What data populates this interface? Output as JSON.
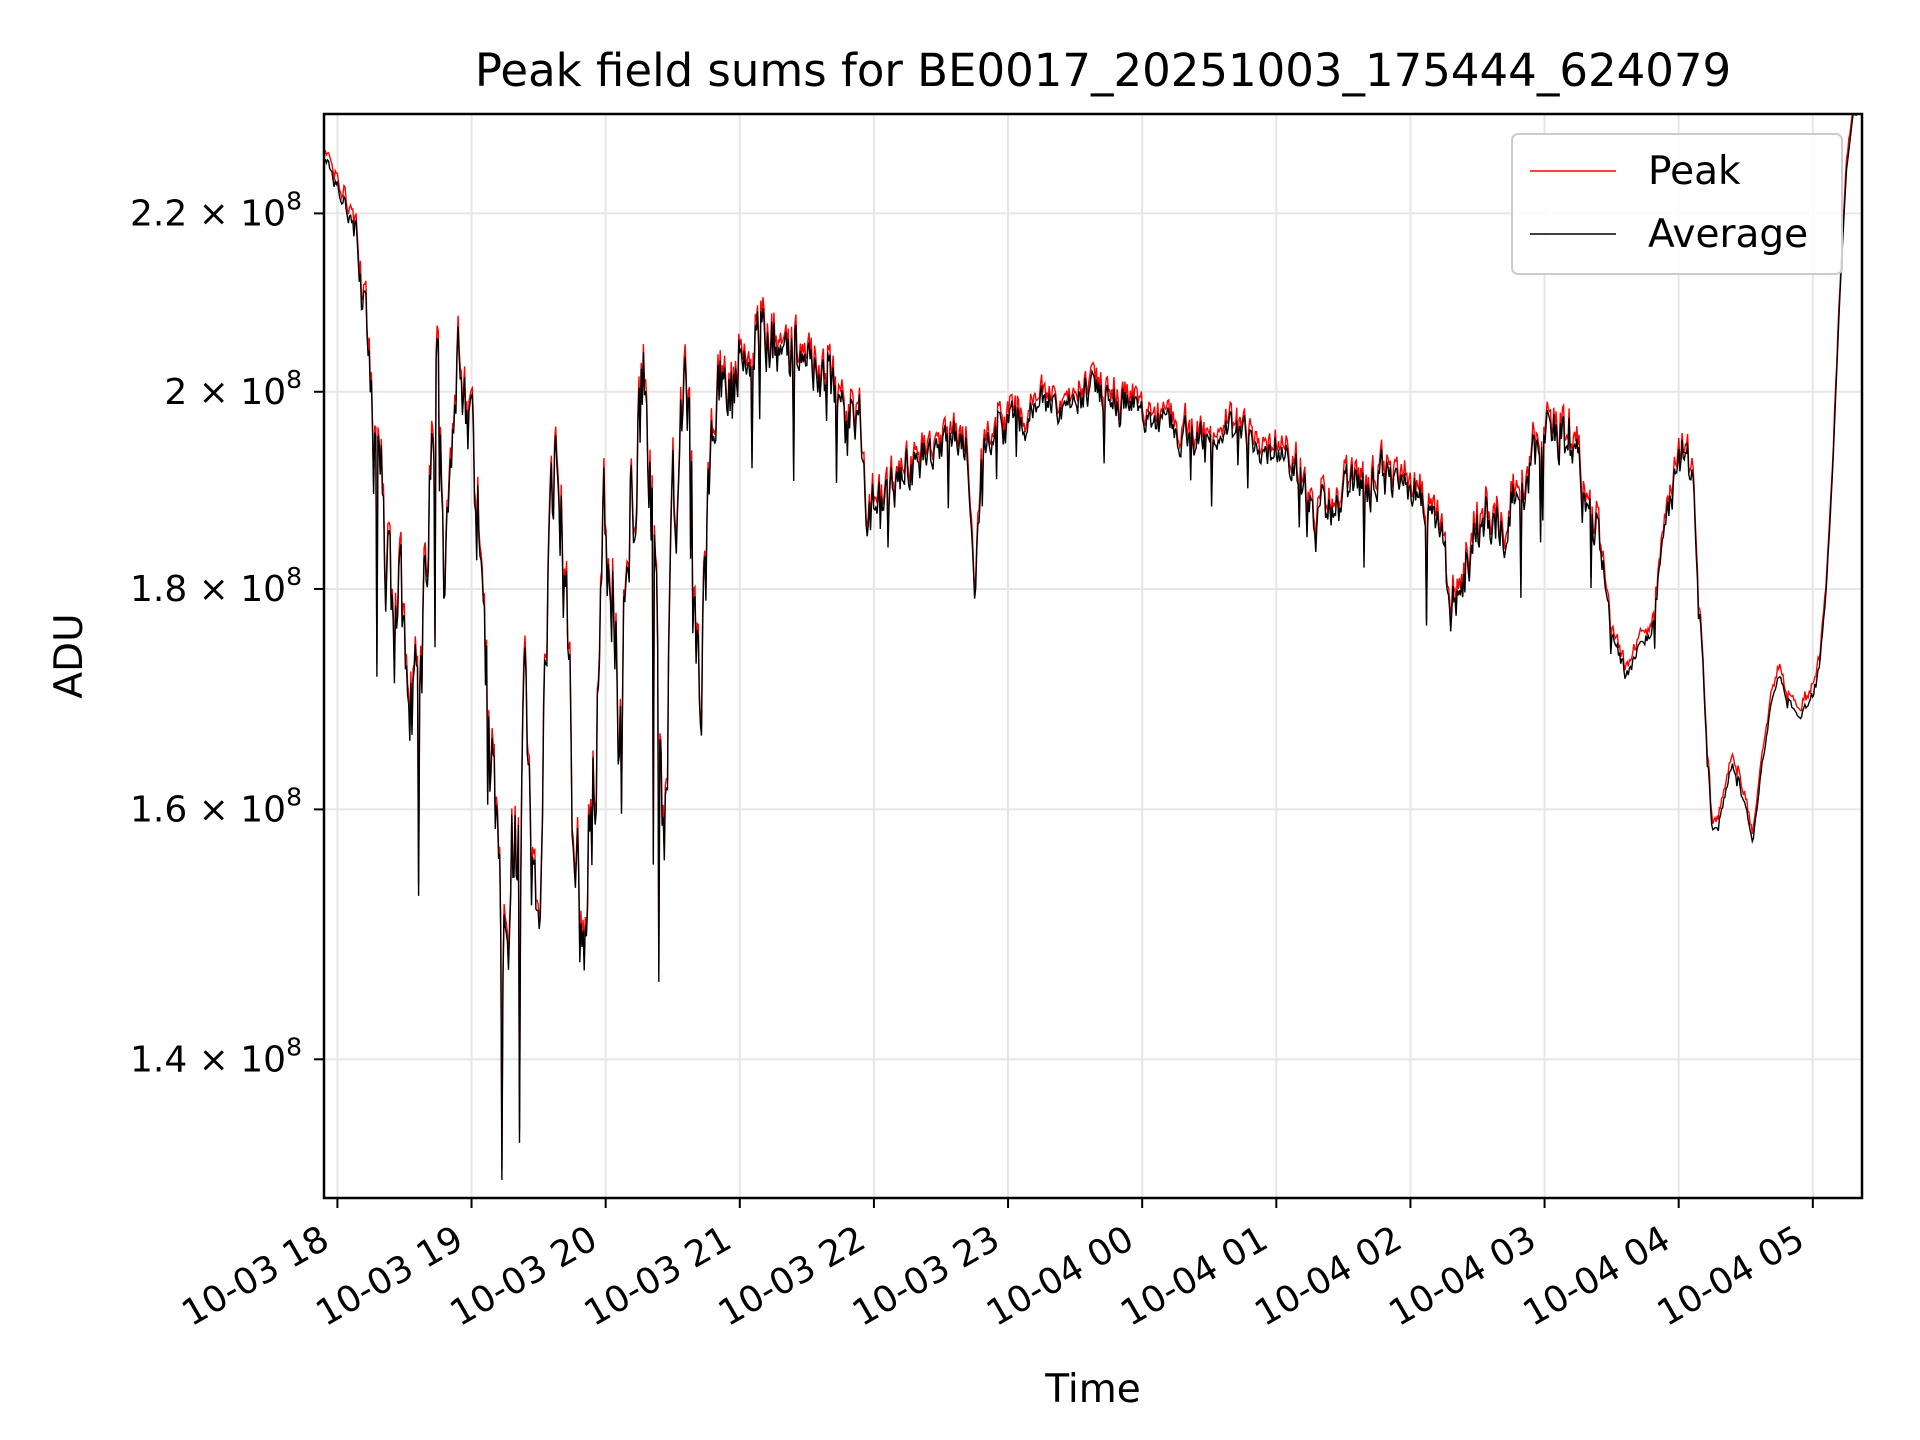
{
  "chart_data": {
    "type": "line",
    "title": "Peak field sums for BE0017_20251003_175444_624079",
    "xlabel": "Time",
    "ylabel": "ADU",
    "y_scale": "log",
    "xlim": [
      "2025-10-03 17:54",
      "2025-10-04 05:22"
    ],
    "ylim": [
      130000000,
      232000000
    ],
    "grid": true,
    "legend_position": "top-right",
    "x_tick_labels": [
      "10-03 18",
      "10-03 19",
      "10-03 20",
      "10-03 21",
      "10-03 22",
      "10-03 23",
      "10-04 00",
      "10-04 01",
      "10-04 02",
      "10-04 03",
      "10-04 04",
      "10-04 05"
    ],
    "x_tick_hours": [
      18,
      19,
      20,
      21,
      22,
      23,
      24,
      25,
      26,
      27,
      28,
      29
    ],
    "y_ticks": [
      {
        "value": 140000000,
        "mantissa": "1.4",
        "exponent": "8"
      },
      {
        "value": 160000000,
        "mantissa": "1.6",
        "exponent": "8"
      },
      {
        "value": 180000000,
        "mantissa": "1.8",
        "exponent": "8"
      },
      {
        "value": 200000000,
        "mantissa": "2",
        "exponent": "8"
      },
      {
        "value": 220000000,
        "mantissa": "2.2",
        "exponent": "8"
      }
    ],
    "series": [
      {
        "name": "Peak",
        "color": "#ff0000",
        "role": "peak"
      },
      {
        "name": "Average",
        "color": "#000000",
        "role": "average"
      }
    ],
    "x_unit": "hours since 2025-10-03 00:00",
    "anchors_x": [
      17.91,
      18.05,
      18.15,
      18.2,
      18.25,
      18.3,
      18.35,
      18.4,
      18.45,
      18.5,
      18.55,
      18.6,
      18.65,
      18.7,
      18.75,
      18.8,
      18.85,
      18.9,
      18.95,
      19.0,
      19.05,
      19.1,
      19.15,
      19.2,
      19.25,
      19.3,
      19.35,
      19.4,
      19.45,
      19.5,
      19.55,
      19.6,
      19.65,
      19.7,
      19.75,
      19.8,
      19.85,
      19.9,
      19.95,
      20.0,
      20.05,
      20.1,
      20.15,
      20.2,
      20.25,
      20.3,
      20.35,
      20.4,
      20.45,
      20.5,
      20.55,
      20.6,
      20.65,
      20.7,
      20.75,
      20.8,
      20.85,
      20.9,
      20.95,
      21.0,
      21.1,
      21.2,
      21.3,
      21.4,
      21.5,
      21.6,
      21.7,
      21.8,
      21.9,
      21.95,
      22.0,
      22.2,
      22.4,
      22.6,
      22.7,
      22.75,
      22.8,
      22.9,
      23.0,
      23.2,
      23.4,
      23.6,
      23.8,
      24.0,
      24.2,
      24.4,
      24.6,
      24.8,
      25.0,
      25.2,
      25.3,
      25.4,
      25.6,
      25.8,
      26.0,
      26.2,
      26.3,
      26.4,
      26.5,
      26.6,
      26.7,
      26.8,
      26.9,
      27.0,
      27.1,
      27.2,
      27.3,
      27.4,
      27.5,
      27.6,
      27.65,
      27.7,
      27.8,
      27.9,
      28.0,
      28.05,
      28.1,
      28.15,
      28.2,
      28.25,
      28.3,
      28.4,
      28.5,
      28.55,
      28.6,
      28.65,
      28.7,
      28.75,
      28.8,
      28.9,
      29.0,
      29.05,
      29.1,
      29.15,
      29.2,
      29.25,
      29.3,
      29.35
    ],
    "anchors_y": [
      227000000,
      222000000,
      218000000,
      208000000,
      200000000,
      191000000,
      186000000,
      178000000,
      175000000,
      178000000,
      168000000,
      166000000,
      178000000,
      192000000,
      205000000,
      180000000,
      195000000,
      203000000,
      198000000,
      193000000,
      188000000,
      175000000,
      165000000,
      152000000,
      148000000,
      160000000,
      155000000,
      165000000,
      152000000,
      150000000,
      172000000,
      190000000,
      198000000,
      175000000,
      162000000,
      152000000,
      150000000,
      162000000,
      175000000,
      185000000,
      178000000,
      168000000,
      180000000,
      190000000,
      195000000,
      200000000,
      190000000,
      172000000,
      160000000,
      185000000,
      195000000,
      205000000,
      188000000,
      165000000,
      182000000,
      198000000,
      200000000,
      202000000,
      200000000,
      205000000,
      207000000,
      206000000,
      205000000,
      204000000,
      203000000,
      202000000,
      200000000,
      199000000,
      197000000,
      187000000,
      188000000,
      191000000,
      193000000,
      195000000,
      194000000,
      180000000,
      192000000,
      195000000,
      196000000,
      198000000,
      199000000,
      200000000,
      199500000,
      198000000,
      196000000,
      195000000,
      196000000,
      195000000,
      194000000,
      190000000,
      186000000,
      188000000,
      190000000,
      191000000,
      190000000,
      188000000,
      178000000,
      182000000,
      186000000,
      188000000,
      187000000,
      190000000,
      192000000,
      194000000,
      196000000,
      195000000,
      190000000,
      186000000,
      176000000,
      172000000,
      173000000,
      175000000,
      176000000,
      186000000,
      193000000,
      194000000,
      191000000,
      180000000,
      168000000,
      158000000,
      159000000,
      164000000,
      160000000,
      157000000,
      162000000,
      166000000,
      170000000,
      172000000,
      170000000,
      168000000,
      170000000,
      173000000,
      180000000,
      192000000,
      210000000,
      225000000,
      232000000,
      232000000
    ],
    "anchors_noise": [
      0.01,
      0.01,
      0.02,
      0.04,
      0.05,
      0.06,
      0.07,
      0.07,
      0.07,
      0.07,
      0.07,
      0.07,
      0.07,
      0.06,
      0.06,
      0.06,
      0.05,
      0.05,
      0.05,
      0.05,
      0.07,
      0.07,
      0.08,
      0.09,
      0.09,
      0.09,
      0.09,
      0.08,
      0.07,
      0.07,
      0.07,
      0.08,
      0.08,
      0.08,
      0.09,
      0.09,
      0.09,
      0.09,
      0.08,
      0.08,
      0.08,
      0.08,
      0.08,
      0.08,
      0.08,
      0.08,
      0.08,
      0.09,
      0.09,
      0.07,
      0.06,
      0.06,
      0.06,
      0.07,
      0.07,
      0.06,
      0.05,
      0.05,
      0.05,
      0.04,
      0.035,
      0.035,
      0.035,
      0.035,
      0.035,
      0.03,
      0.03,
      0.03,
      0.03,
      0.035,
      0.025,
      0.025,
      0.022,
      0.022,
      0.022,
      0.022,
      0.022,
      0.02,
      0.02,
      0.018,
      0.018,
      0.018,
      0.018,
      0.018,
      0.018,
      0.018,
      0.018,
      0.018,
      0.02,
      0.022,
      0.024,
      0.025,
      0.025,
      0.025,
      0.025,
      0.028,
      0.03,
      0.03,
      0.03,
      0.03,
      0.03,
      0.03,
      0.03,
      0.03,
      0.035,
      0.035,
      0.035,
      0.03,
      0.008,
      0.008,
      0.008,
      0.008,
      0.008,
      0.02,
      0.025,
      0.025,
      0.02,
      0.01,
      0.008,
      0.004,
      0.004,
      0.006,
      0.006,
      0.004,
      0.004,
      0.004,
      0.004,
      0.004,
      0.004,
      0.004,
      0.004,
      0.004,
      0.003,
      0.002,
      0.001,
      0.001,
      0.001,
      0.001
    ],
    "sample_count": 1400,
    "noise_seed": 17
  }
}
